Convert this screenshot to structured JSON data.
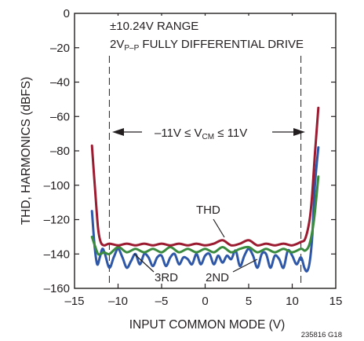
{
  "chart_data": {
    "type": "line",
    "xlabel": "INPUT COMMON MODE (V)",
    "ylabel": "THD, HARMONICS (dBFS)",
    "xlim": [
      -15,
      15
    ],
    "ylim": [
      -160,
      0
    ],
    "xticks": [
      -15,
      -10,
      -5,
      0,
      5,
      10,
      15
    ],
    "yticks": [
      0,
      -20,
      -40,
      -60,
      -80,
      -100,
      -120,
      -140,
      -160
    ],
    "xtick_labels": [
      "–15",
      "–10",
      "–5",
      "0",
      "5",
      "10",
      "15"
    ],
    "ytick_labels": [
      "0",
      "–20",
      "–40",
      "–60",
      "–80",
      "–100",
      "–120",
      "–140",
      "–160"
    ],
    "grid": false,
    "range_limits": [
      -11,
      11
    ],
    "annotations": {
      "range_line1": "±10.24V RANGE",
      "range_line2_prefix": "2V",
      "range_line2_sub": "P–P",
      "range_line2_suffix": " FULLY DIFFERENTIAL DRIVE",
      "vcm_prefix": "–11V ≤ V",
      "vcm_sub": "CM",
      "vcm_suffix": " ≤ 11V",
      "thd_label": "THD",
      "third_label": "3RD",
      "second_label": "2ND",
      "figure_id": "235816 G18"
    },
    "series": [
      {
        "name": "THD",
        "color": "#9b1b30",
        "x": [
          -13,
          -12.6,
          -12.3,
          -12,
          -11.6,
          -11,
          -10,
          -9,
          -8,
          -7,
          -6,
          -5,
          -4,
          -3,
          -2,
          -1,
          0,
          1,
          2,
          3,
          4,
          5,
          6,
          7,
          8,
          9,
          10,
          11,
          11.5,
          12,
          12.3,
          12.6,
          13
        ],
        "y": [
          -77,
          -105,
          -125,
          -133,
          -135,
          -134,
          -135,
          -134,
          -135,
          -134,
          -135,
          -134,
          -135,
          -134,
          -135,
          -134,
          -135,
          -134,
          -132,
          -135,
          -134,
          -132,
          -135,
          -134,
          -135,
          -134,
          -135,
          -133,
          -131,
          -120,
          -105,
          -82,
          -55
        ]
      },
      {
        "name": "3RD",
        "color": "#3a8a3f",
        "x": [
          -13,
          -12.6,
          -12.3,
          -12,
          -11.6,
          -11,
          -10,
          -9,
          -8,
          -7,
          -6,
          -5,
          -4,
          -3,
          -2,
          -1,
          0,
          1,
          2,
          3,
          4,
          5,
          6,
          7,
          8,
          9,
          10,
          11,
          11.5,
          12,
          12.5,
          13
        ],
        "y": [
          -130,
          -136,
          -140,
          -140,
          -139,
          -140,
          -136,
          -139,
          -137,
          -139,
          -137,
          -139,
          -136,
          -139,
          -137,
          -139,
          -137,
          -139,
          -136,
          -139,
          -137,
          -136,
          -139,
          -137,
          -139,
          -137,
          -139,
          -137,
          -138,
          -134,
          -120,
          -95
        ]
      },
      {
        "name": "2ND",
        "color": "#2e57a8",
        "x": [
          -13,
          -12.7,
          -12.4,
          -12.1,
          -11.8,
          -11.5,
          -11,
          -10.5,
          -10,
          -9.5,
          -9,
          -8.5,
          -8,
          -7.5,
          -7,
          -6.5,
          -6,
          -5.5,
          -5,
          -4.5,
          -4,
          -3.5,
          -3,
          -2.5,
          -2,
          -1.5,
          -1,
          -0.5,
          0,
          0.5,
          1,
          1.5,
          2,
          2.5,
          3,
          3.5,
          4,
          4.5,
          5,
          5.5,
          6,
          6.5,
          7,
          7.5,
          8,
          8.5,
          9,
          9.5,
          10,
          10.5,
          11,
          11.4,
          11.7,
          12,
          12.3,
          12.6,
          13
        ],
        "y": [
          -115,
          -135,
          -146,
          -142,
          -137,
          -140,
          -148,
          -142,
          -137,
          -142,
          -148,
          -144,
          -140,
          -146,
          -140,
          -142,
          -147,
          -142,
          -141,
          -147,
          -142,
          -140,
          -146,
          -142,
          -143,
          -146,
          -140,
          -146,
          -141,
          -140,
          -146,
          -141,
          -145,
          -141,
          -143,
          -138,
          -147,
          -141,
          -137,
          -141,
          -148,
          -140,
          -140,
          -148,
          -141,
          -143,
          -148,
          -138,
          -141,
          -146,
          -142,
          -148,
          -150,
          -145,
          -130,
          -100,
          -78
        ]
      }
    ]
  }
}
